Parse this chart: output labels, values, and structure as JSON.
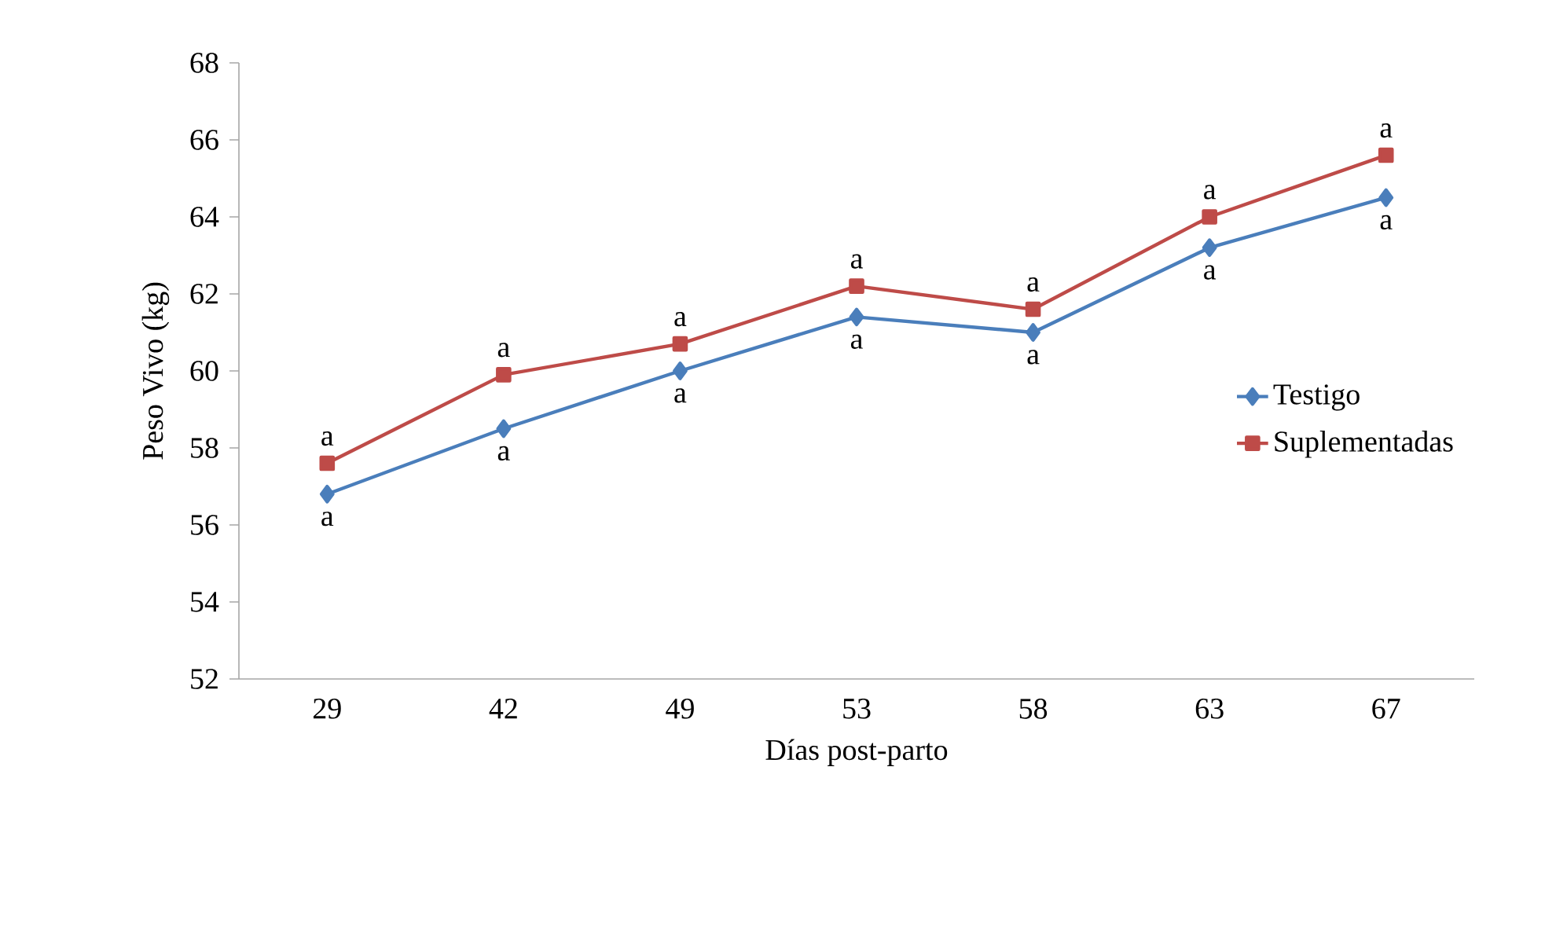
{
  "chart_data": {
    "type": "line",
    "xlabel": "Días post-parto",
    "ylabel": "Peso Vivo (kg)",
    "categories": [
      "29",
      "42",
      "49",
      "53",
      "58",
      "63",
      "67"
    ],
    "series": [
      {
        "name": "Testigo",
        "color": "#4a7ebb",
        "marker": "diamond",
        "values": [
          56.8,
          58.5,
          60.0,
          61.4,
          61.0,
          63.2,
          64.5
        ]
      },
      {
        "name": "Suplementadas",
        "color": "#be4b48",
        "marker": "square",
        "values": [
          57.6,
          59.9,
          60.7,
          62.2,
          61.6,
          64.0,
          65.6
        ]
      }
    ],
    "ylim": [
      52,
      68
    ],
    "yticks": [
      52,
      54,
      56,
      58,
      60,
      62,
      64,
      66,
      68
    ],
    "legend": "right",
    "grid": false,
    "line_style": "solid",
    "annotations": [
      {
        "text": "a",
        "x": "29",
        "y": 56.8
      },
      {
        "text": "a",
        "x": "42",
        "y": 58.5
      },
      {
        "text": "a",
        "x": "49",
        "y": 60.0
      },
      {
        "text": "a",
        "x": "53",
        "y": 61.4
      },
      {
        "text": "a",
        "x": "58",
        "y": 61.0
      },
      {
        "text": "a",
        "x": "63",
        "y": 63.2
      },
      {
        "text": "a",
        "x": "67",
        "y": 64.5
      },
      {
        "text": "a",
        "x": "29",
        "y": 57.6
      },
      {
        "text": "a",
        "x": "42",
        "y": 59.9
      },
      {
        "text": "a",
        "x": "49",
        "y": 60.7
      },
      {
        "text": "a",
        "x": "53",
        "y": 62.2
      },
      {
        "text": "a",
        "x": "58",
        "y": 61.6
      },
      {
        "text": "a",
        "x": "63",
        "y": 64.0
      },
      {
        "text": "a",
        "x": "67",
        "y": 65.6
      }
    ]
  }
}
